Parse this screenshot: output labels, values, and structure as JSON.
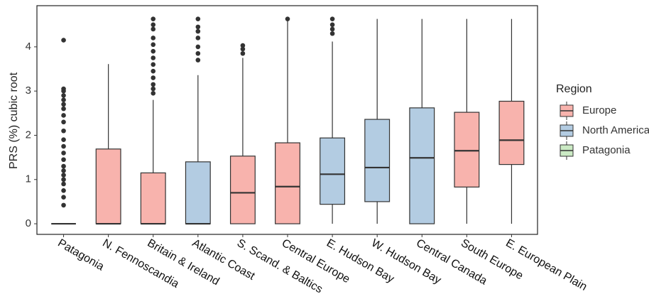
{
  "chart_data": {
    "type": "box",
    "y_label": "PRS (%) cubic root",
    "legend_title": "Region",
    "series": [
      {
        "name": "Europe",
        "color": "#f8b3ad"
      },
      {
        "name": "North America",
        "color": "#b3cce2"
      },
      {
        "name": "Patagonia",
        "color": "#cbeac4"
      }
    ],
    "categories": [
      "Patagonia",
      "N. Fennoscandia",
      "Britain & Ireland",
      "Atlantic Coast",
      "S. Scand. & Baltics",
      "Central Europe",
      "E. Hudson Bay",
      "W. Hudson Bay",
      "Central Canada",
      "South Europe",
      "E. European Plain"
    ],
    "boxes": [
      {
        "region": "Patagonia",
        "whisker_low": 0,
        "q1": 0,
        "median": 0,
        "q3": 0,
        "whisker_high": 0,
        "outliers": [
          0.42,
          0.6,
          0.75,
          0.9,
          1.0,
          1.1,
          1.2,
          1.3,
          1.45,
          1.6,
          1.75,
          1.9,
          2.1,
          2.3,
          2.45,
          2.6,
          2.7,
          2.8,
          2.9,
          3.0,
          3.05,
          4.15
        ]
      },
      {
        "region": "Europe",
        "whisker_low": 0,
        "q1": 0,
        "median": 0,
        "q3": 1.69,
        "whisker_high": 3.61,
        "outliers": []
      },
      {
        "region": "Europe",
        "whisker_low": 0,
        "q1": 0,
        "median": 0,
        "q3": 1.15,
        "whisker_high": 2.8,
        "outliers": [
          2.95,
          3.05,
          3.15,
          3.3,
          3.45,
          3.6,
          3.75,
          3.9,
          4.05,
          4.2,
          4.4,
          4.5,
          4.63
        ]
      },
      {
        "region": "North America",
        "whisker_low": 0,
        "q1": 0,
        "median": 0,
        "q3": 1.4,
        "whisker_high": 3.36,
        "outliers": [
          3.7,
          3.85,
          4.0,
          4.2,
          4.35,
          4.45,
          4.63
        ]
      },
      {
        "region": "Europe",
        "whisker_low": 0,
        "q1": 0,
        "median": 0.7,
        "q3": 1.53,
        "whisker_high": 3.75,
        "outliers": [
          3.85,
          3.95,
          4.03
        ]
      },
      {
        "region": "Europe",
        "whisker_low": 0,
        "q1": 0,
        "median": 0.84,
        "q3": 1.83,
        "whisker_high": 4.6,
        "outliers": [
          4.63
        ]
      },
      {
        "region": "North America",
        "whisker_low": 0,
        "q1": 0.44,
        "median": 1.12,
        "q3": 1.94,
        "whisker_high": 4.12,
        "outliers": [
          4.3,
          4.4,
          4.5,
          4.63
        ]
      },
      {
        "region": "North America",
        "whisker_low": 0,
        "q1": 0.5,
        "median": 1.27,
        "q3": 2.36,
        "whisker_high": 4.63,
        "outliers": []
      },
      {
        "region": "North America",
        "whisker_low": 0,
        "q1": 0,
        "median": 1.49,
        "q3": 2.62,
        "whisker_high": 4.63,
        "outliers": []
      },
      {
        "region": "Europe",
        "whisker_low": 0,
        "q1": 0.83,
        "median": 1.65,
        "q3": 2.52,
        "whisker_high": 4.63,
        "outliers": []
      },
      {
        "region": "Europe",
        "whisker_low": 0,
        "q1": 1.34,
        "median": 1.89,
        "q3": 2.77,
        "whisker_high": 4.63,
        "outliers": []
      }
    ],
    "ylim": [
      -0.24,
      4.93
    ],
    "yticks": [
      0,
      1,
      2,
      3,
      4
    ]
  }
}
